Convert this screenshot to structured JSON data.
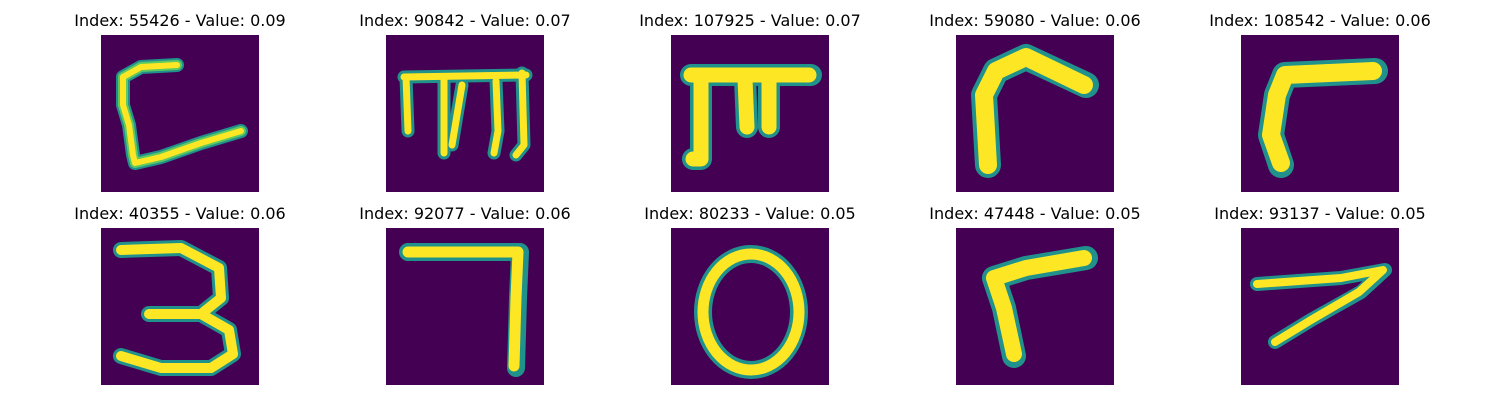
{
  "colors": {
    "background": "#440154",
    "stroke_outer": "#21918c",
    "stroke_mid": "#5ec962",
    "stroke_inner": "#fde725"
  },
  "panels": [
    {
      "index": 55426,
      "value": 0.09,
      "title": "Index: 55426 - Value: 0.09",
      "glyph": "C-L stroke"
    },
    {
      "index": 90842,
      "value": 0.07,
      "title": "Index: 90842 - Value: 0.07",
      "glyph": "m"
    },
    {
      "index": 107925,
      "value": 0.07,
      "title": "Index: 107925 - Value: 0.07",
      "glyph": "π-like"
    },
    {
      "index": 59080,
      "value": 0.06,
      "title": "Index: 59080 - Value: 0.06",
      "glyph": "r"
    },
    {
      "index": 108542,
      "value": 0.06,
      "title": "Index: 108542 - Value: 0.06",
      "glyph": "r"
    },
    {
      "index": 40355,
      "value": 0.06,
      "title": "Index: 40355 - Value: 0.06",
      "glyph": "3"
    },
    {
      "index": 92077,
      "value": 0.06,
      "title": "Index: 92077 - Value: 0.06",
      "glyph": "7"
    },
    {
      "index": 80233,
      "value": 0.05,
      "title": "Index: 80233 - Value: 0.05",
      "glyph": "0"
    },
    {
      "index": 47448,
      "value": 0.05,
      "title": "Index: 47448 - Value: 0.05",
      "glyph": "r"
    },
    {
      "index": 93137,
      "value": 0.05,
      "title": "Index: 93137 - Value: 0.05",
      "glyph": "7"
    }
  ]
}
